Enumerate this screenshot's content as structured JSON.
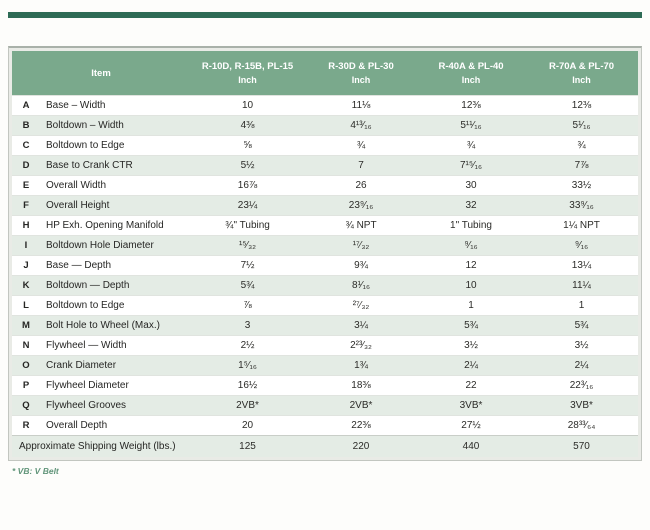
{
  "page": {
    "accent_bar_color": "#2e6b55",
    "header_green": "#7aa98c",
    "stripe_color": "#e4ece5",
    "footnote": "* VB: V Belt"
  },
  "table": {
    "item_header": "Item",
    "columns": [
      {
        "models": "R-10D, R-15B, PL-15",
        "unit": "Inch"
      },
      {
        "models": "R-30D & PL-30",
        "unit": "Inch"
      },
      {
        "models": "R-40A & PL-40",
        "unit": "Inch"
      },
      {
        "models": "R-70A & PL-70",
        "unit": "Inch"
      }
    ],
    "rows": [
      {
        "letter": "A",
        "item": "Base – Width",
        "values": [
          "10",
          "11⅛",
          "12⅜",
          "12⅜"
        ]
      },
      {
        "letter": "B",
        "item": "Boltdown – Width",
        "values": [
          "4⅜",
          "4¹³⁄₁₆",
          "5¹¹⁄₁₆",
          "5¹⁄₁₆"
        ]
      },
      {
        "letter": "C",
        "item": "Boltdown to Edge",
        "values": [
          "⅝",
          "¾",
          "¾",
          "¾"
        ]
      },
      {
        "letter": "D",
        "item": "Base to Crank CTR",
        "values": [
          "5½",
          "7",
          "7¹⁵⁄₁₆",
          "7⅞"
        ]
      },
      {
        "letter": "E",
        "item": "Overall Width",
        "values": [
          "16⅞",
          "26",
          "30",
          "33½"
        ]
      },
      {
        "letter": "F",
        "item": "Overall Height",
        "values": [
          "23¼",
          "23⁹⁄₁₆",
          "32",
          "33⁹⁄₁₆"
        ]
      },
      {
        "letter": "H",
        "item": "HP Exh. Opening Manifold",
        "values": [
          "¾\" Tubing",
          "¾ NPT",
          "1\" Tubing",
          "1¼ NPT"
        ]
      },
      {
        "letter": "I",
        "item": "Boltdown Hole Diameter",
        "values": [
          "¹⁵⁄₃₂",
          "¹⁷⁄₃₂",
          "⁹⁄₁₆",
          "⁹⁄₁₆"
        ]
      },
      {
        "letter": "J",
        "item": "Base — Depth",
        "values": [
          "7½",
          "9¾",
          "12",
          "13¼"
        ]
      },
      {
        "letter": "K",
        "item": "Boltdown — Depth",
        "values": [
          "5¾",
          "8¹⁄₁₆",
          "10",
          "11¼"
        ]
      },
      {
        "letter": "L",
        "item": "Boltdown to Edge",
        "values": [
          "⅞",
          "²⁷⁄₃₂",
          "1",
          "1"
        ]
      },
      {
        "letter": "M",
        "item": "Bolt Hole to Wheel (Max.)",
        "values": [
          "3",
          "3¼",
          "5¾",
          "5¾"
        ]
      },
      {
        "letter": "N",
        "item": "Flywheel — Width",
        "values": [
          "2½",
          "2²³⁄₃₂",
          "3½",
          "3½"
        ]
      },
      {
        "letter": "O",
        "item": "Crank Diameter",
        "values": [
          "1⁵⁄₁₆",
          "1¾",
          "2¼",
          "2¼"
        ]
      },
      {
        "letter": "P",
        "item": "Flywheel Diameter",
        "values": [
          "16½",
          "18⅜",
          "22",
          "22³⁄₁₆"
        ]
      },
      {
        "letter": "Q",
        "item": "Flywheel Grooves",
        "values": [
          "2VB*",
          "2VB*",
          "3VB*",
          "3VB*"
        ]
      },
      {
        "letter": "R",
        "item": "Overall Depth",
        "values": [
          "20",
          "22⅜",
          "27½",
          "28³³⁄₆₄"
        ]
      }
    ],
    "footer_row": {
      "label": "Approximate Shipping Weight (lbs.)",
      "values": [
        "125",
        "220",
        "440",
        "570"
      ]
    }
  }
}
